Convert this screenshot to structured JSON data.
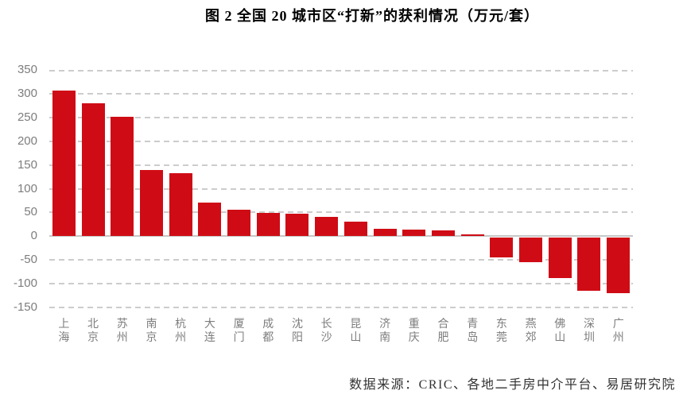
{
  "title": "图 2 全国 20 城市区“打新”的获利情况（万元/套）",
  "footer": "数据来源：CRIC、各地二手房中介平台、易居研究院",
  "colors": {
    "bar": "#CF0C15",
    "gridline": "#cccccc",
    "axis_line": "#c6c6c6",
    "tick_label": "#7d7d7d",
    "title_text": "#000000",
    "footer_text": "#333333"
  },
  "chart_data": {
    "type": "bar",
    "title": "图 2 全国 20 城市区“打新”的获利情况（万元/套）",
    "unit": "万元/套",
    "categories": [
      "上海",
      "北京",
      "苏州",
      "南京",
      "杭州",
      "大连",
      "厦门",
      "成都",
      "沈阳",
      "长沙",
      "昆山",
      "济南",
      "重庆",
      "合肥",
      "青岛",
      "东莞",
      "燕郊",
      "佛山",
      "深圳",
      "广州"
    ],
    "values": [
      307,
      280,
      251,
      140,
      132,
      70,
      55,
      49,
      47,
      40,
      31,
      15,
      14,
      12,
      4,
      -42,
      -51,
      -84,
      -112,
      -116
    ],
    "xlabel": "",
    "ylabel": "",
    "ylim": [
      -150,
      350
    ],
    "ytick_step": 50,
    "grid": "horizontal-dashed",
    "legend": "none",
    "bar_color": "#CF0C15",
    "source_note": "数据来源：CRIC、各地二手房中介平台、易居研究院"
  }
}
